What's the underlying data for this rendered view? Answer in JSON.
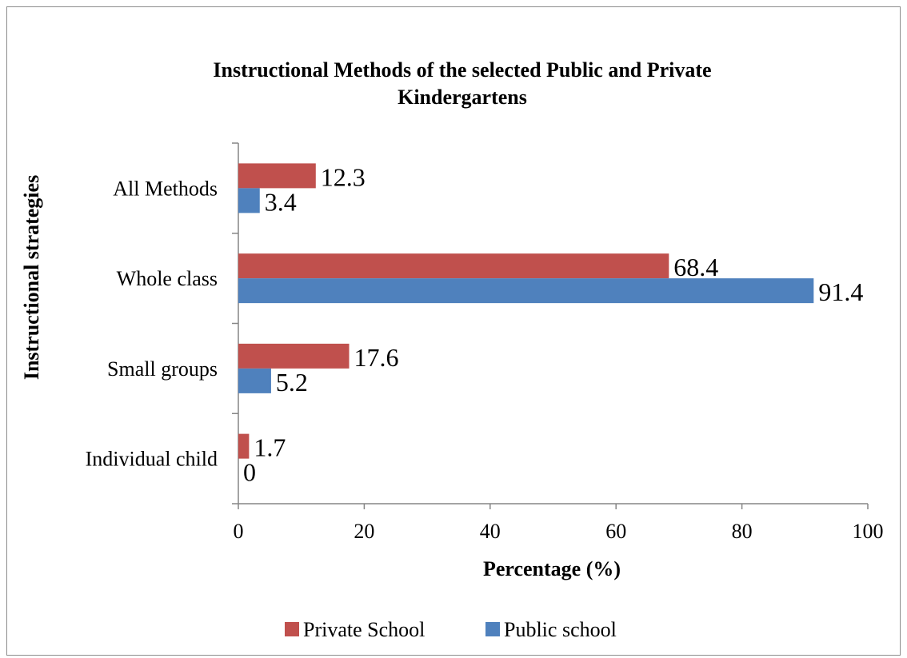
{
  "chart_data": {
    "type": "bar",
    "orientation": "horizontal",
    "title_line1": "Instructional Methods of the selected Public and Private",
    "title_line2": "Kindergartens",
    "xlabel": "Percentage (%)",
    "ylabel": "Instructional strategies",
    "categories": [
      "Individual child",
      "Small groups",
      "Whole class",
      "All Methods"
    ],
    "series": [
      {
        "name": "Private School",
        "color": "#c0504d",
        "values": [
          1.7,
          17.6,
          68.4,
          12.3
        ]
      },
      {
        "name": "Public school",
        "color": "#4f81bd",
        "values": [
          0,
          5.2,
          91.4,
          3.4
        ]
      }
    ],
    "xlim": [
      0,
      100
    ],
    "xticks": [
      0,
      20,
      40,
      60,
      80,
      100
    ],
    "grid": false,
    "legend_position": "bottom"
  }
}
